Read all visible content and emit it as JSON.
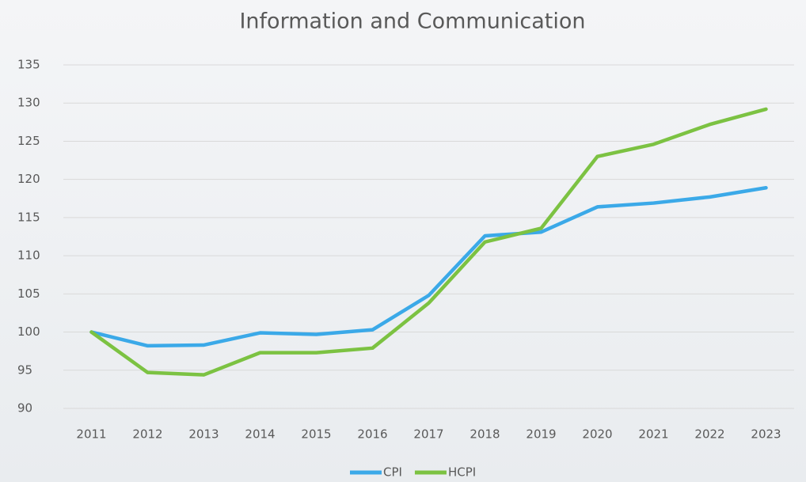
{
  "chart_data": {
    "type": "line",
    "title": "Information and Communication",
    "categories": [
      "2011",
      "2012",
      "2013",
      "2014",
      "2015",
      "2016",
      "2017",
      "2018",
      "2019",
      "2020",
      "2021",
      "2022",
      "2023"
    ],
    "series": [
      {
        "name": "CPI",
        "color": "#3ba9e8",
        "values": [
          100,
          98.2,
          98.3,
          99.9,
          99.7,
          100.3,
          104.8,
          112.6,
          113.1,
          116.4,
          116.9,
          117.7,
          118.9
        ]
      },
      {
        "name": "HCPI",
        "color": "#7cc242",
        "values": [
          100,
          94.7,
          94.4,
          97.3,
          97.3,
          97.9,
          103.8,
          111.8,
          113.6,
          123.0,
          124.6,
          127.2,
          129.2
        ]
      }
    ],
    "ylim": [
      90,
      135
    ],
    "yticks": [
      90,
      95,
      100,
      105,
      110,
      115,
      120,
      125,
      130,
      135
    ],
    "grid": true,
    "legend": "bottom"
  }
}
